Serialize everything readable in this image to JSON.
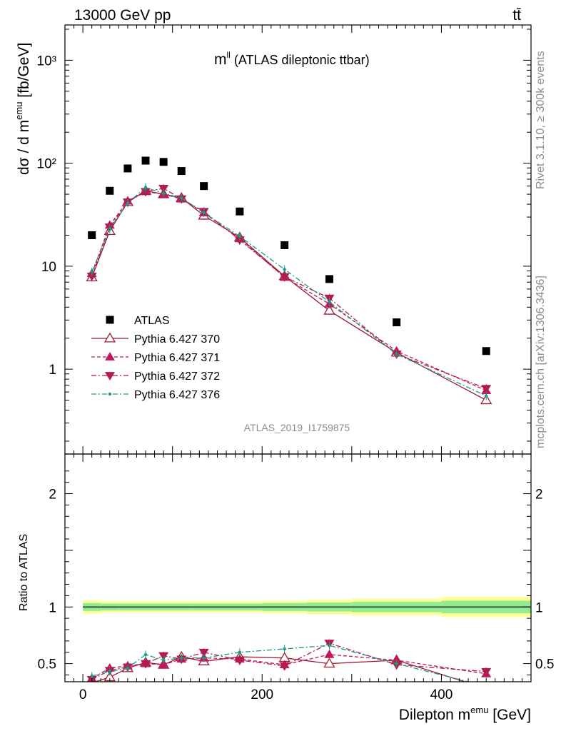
{
  "header": {
    "left": "13000 GeV pp",
    "right": "tt̄"
  },
  "side_labels": {
    "rivet": "Rivet 3.1.10, ≥ 300k events",
    "mcplots": "mcplots.cern.ch [arXiv:1306.3436]"
  },
  "plot_title_main": "m",
  "plot_title_sup": "ll",
  "plot_title_rest": " (ATLAS dileptonic ttbar)",
  "analysis_id": "ATLAS_2019_I1759875",
  "ylabel_top": "dσ / d m",
  "ylabel_top_sup": "emu",
  "ylabel_top_unit": " [fb/GeV]",
  "ylabel_bottom": "Ratio to ATLAS",
  "xlabel": "Dilepton m",
  "xlabel_sup": "emu",
  "xlabel_unit": " [GeV]",
  "colors": {
    "data": "#000000",
    "p370": "#9b1b30",
    "p371": "#c0185f",
    "p372": "#b01c4e",
    "p376": "#1a9a8a",
    "band_outer": "#ffff99",
    "band_inner": "#90ee90"
  },
  "chart_data": [
    {
      "type": "scatter",
      "title": "m^ll (ATLAS dileptonic ttbar)",
      "xlabel": "Dilepton m^emu [GeV]",
      "ylabel": "dσ / d m^emu [fb/GeV]",
      "yscale": "log",
      "xlim": [
        -20,
        500
      ],
      "ylim": [
        0.15,
        2200
      ],
      "x_ticks": [
        "0",
        "200",
        "400"
      ],
      "y_ticks": [
        "1",
        "10",
        "10²",
        "10³"
      ],
      "legend_position": "bottom-left",
      "x": [
        10,
        30,
        50,
        70,
        90,
        110,
        135,
        175,
        225,
        275,
        350,
        450
      ],
      "series": [
        {
          "name": "ATLAS",
          "style": "square",
          "values": [
            20,
            54,
            89,
            106,
            103,
            84,
            60,
            34,
            16,
            7.5,
            2.85,
            1.5
          ]
        },
        {
          "name": "Pythia 6.427 370",
          "style": "open-triangle-up",
          "values": [
            7.8,
            22,
            42,
            54,
            50,
            46,
            31,
            19,
            8,
            3.7,
            1.45,
            0.5
          ]
        },
        {
          "name": "Pythia 6.427 371",
          "style": "filled-triangle-up",
          "values": [
            8.5,
            25,
            43,
            53,
            50,
            45,
            33,
            18.5,
            7.8,
            4.3,
            1.5,
            0.62
          ]
        },
        {
          "name": "Pythia 6.427 372",
          "style": "filled-triangle-down",
          "values": [
            8.0,
            24,
            42,
            53,
            57,
            45,
            34,
            18,
            7.9,
            4.9,
            1.4,
            0.65
          ]
        },
        {
          "name": "Pythia 6.427 376",
          "style": "dot",
          "values": [
            8.8,
            23,
            41,
            58,
            51,
            46,
            33,
            19.5,
            9.3,
            4.5,
            1.4,
            0.55
          ]
        }
      ]
    },
    {
      "type": "scatter",
      "ylabel": "Ratio to ATLAS",
      "xlim": [
        -20,
        500
      ],
      "ylim": [
        0.34,
        2.35
      ],
      "y_ticks": [
        "0.5",
        "1",
        "2"
      ],
      "x": [
        10,
        30,
        50,
        70,
        90,
        110,
        135,
        175,
        225,
        275,
        350,
        450
      ],
      "band_x_edges": [
        0,
        20,
        40,
        60,
        80,
        100,
        120,
        150,
        200,
        250,
        300,
        400,
        500
      ],
      "band_outer_halfwidth": [
        0.06,
        0.05,
        0.05,
        0.05,
        0.05,
        0.05,
        0.05,
        0.05,
        0.055,
        0.065,
        0.075,
        0.09
      ],
      "band_inner_halfwidth": [
        0.035,
        0.03,
        0.03,
        0.03,
        0.03,
        0.03,
        0.03,
        0.03,
        0.035,
        0.04,
        0.045,
        0.055
      ],
      "series": [
        {
          "name": "Pythia 6.427 370",
          "values": [
            0.33,
            0.38,
            0.46,
            0.51,
            0.49,
            0.56,
            0.52,
            0.56,
            0.55,
            0.5,
            0.53,
            0.28
          ]
        },
        {
          "name": "Pythia 6.427 371",
          "values": [
            0.37,
            0.46,
            0.48,
            0.5,
            0.49,
            0.54,
            0.55,
            0.54,
            0.49,
            0.58,
            0.53,
            0.41
          ]
        },
        {
          "name": "Pythia 6.427 372",
          "values": [
            0.36,
            0.44,
            0.47,
            0.5,
            0.57,
            0.54,
            0.6,
            0.53,
            0.48,
            0.68,
            0.49,
            0.43
          ]
        },
        {
          "name": "Pythia 6.427 376",
          "values": [
            0.39,
            0.43,
            0.46,
            0.58,
            0.53,
            0.55,
            0.55,
            0.6,
            0.63,
            0.66,
            0.5,
            0.3
          ]
        }
      ]
    }
  ]
}
